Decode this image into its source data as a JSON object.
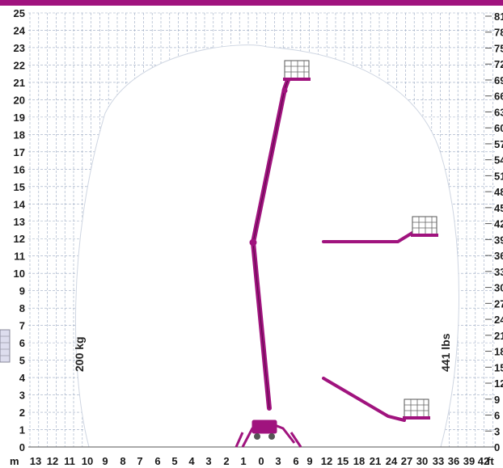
{
  "chart_data": {
    "type": "working-range-diagram",
    "y_left": {
      "unit": "",
      "min": 0,
      "max": 25,
      "ticks": [
        "0",
        "1",
        "2",
        "3",
        "4",
        "5",
        "6",
        "7",
        "8",
        "9",
        "10",
        "11",
        "12",
        "13",
        "14",
        "15",
        "16",
        "17",
        "18",
        "19",
        "20",
        "21",
        "22",
        "23",
        "24",
        "25"
      ]
    },
    "x_meters": {
      "unit": "m",
      "ticks": [
        "13",
        "12",
        "11",
        "10",
        "9",
        "8",
        "7",
        "6",
        "5",
        "4",
        "3",
        "2",
        "1",
        "0",
        "3",
        "6",
        "9"
      ]
    },
    "x_feet": {
      "unit": "ft",
      "ticks": [
        "12",
        "15",
        "18",
        "21",
        "24",
        "27",
        "30",
        "33",
        "36",
        "39",
        "42"
      ]
    },
    "y_right_feet": {
      "ticks": [
        "81",
        "78",
        "75",
        "72",
        "69",
        "66",
        "63",
        "60",
        "57",
        "54",
        "51",
        "48",
        "45",
        "42",
        "39",
        "36",
        "33",
        "30",
        "27",
        "24",
        "21",
        "18",
        "15",
        "12",
        "9",
        "6",
        "3",
        "0"
      ]
    },
    "load_left": "200 kg",
    "load_right": "441 lbs",
    "colors": {
      "boom": "#a0137e",
      "header_bar": "#a0137e",
      "grid": "#9aa9c2",
      "envelope": "#ffffff"
    }
  }
}
